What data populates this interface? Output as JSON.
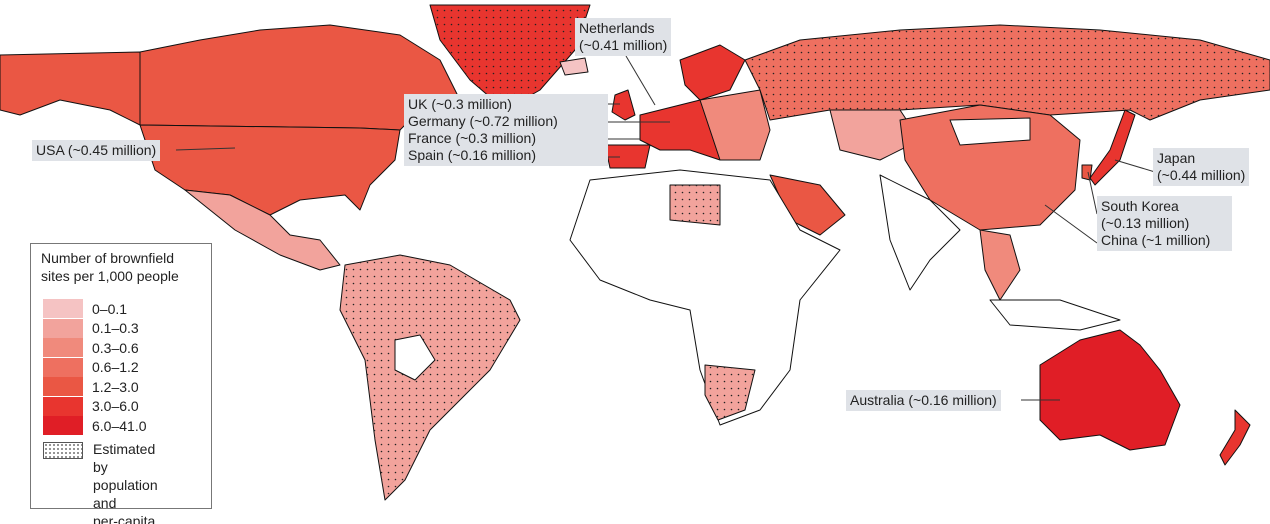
{
  "legend": {
    "title_line1": "Number of brownfield",
    "title_line2": "sites per 1,000 people",
    "classes": [
      {
        "label": "0–0.1",
        "color": "#f5c3c3"
      },
      {
        "label": "0.1–0.3",
        "color": "#f2a39c"
      },
      {
        "label": "0.3–0.6",
        "color": "#f08a7c"
      },
      {
        "label": "0.6–1.2",
        "color": "#ee7060"
      },
      {
        "label": "1.2–3.0",
        "color": "#ea5744"
      },
      {
        "label": "3.0–6.0",
        "color": "#e8352f"
      },
      {
        "label": "6.0–41.0",
        "color": "#e01e26"
      }
    ],
    "estimated_line1": "Estimated by",
    "estimated_line2": "population and",
    "estimated_line3": "per-capita GDP"
  },
  "callouts": {
    "usa": "USA (~0.45 million)",
    "netherlands_1": "Netherlands",
    "netherlands_2": "(~0.41 million)",
    "uk": "UK (~0.3 million)",
    "germany": "Germany (~0.72 million)",
    "france": "France (~0.3 million)",
    "spain": "Spain (~0.16 million)",
    "japan_1": "Japan",
    "japan_2": "(~0.44 million)",
    "south_korea_1": "South Korea",
    "south_korea_2": "(~0.13 million)",
    "china": "China (~1 million)",
    "australia": "Australia (~0.16 million)"
  },
  "colors": {
    "no_data": "#ffffff",
    "border": "#111111",
    "callout_bg": "#dfe2e7"
  }
}
